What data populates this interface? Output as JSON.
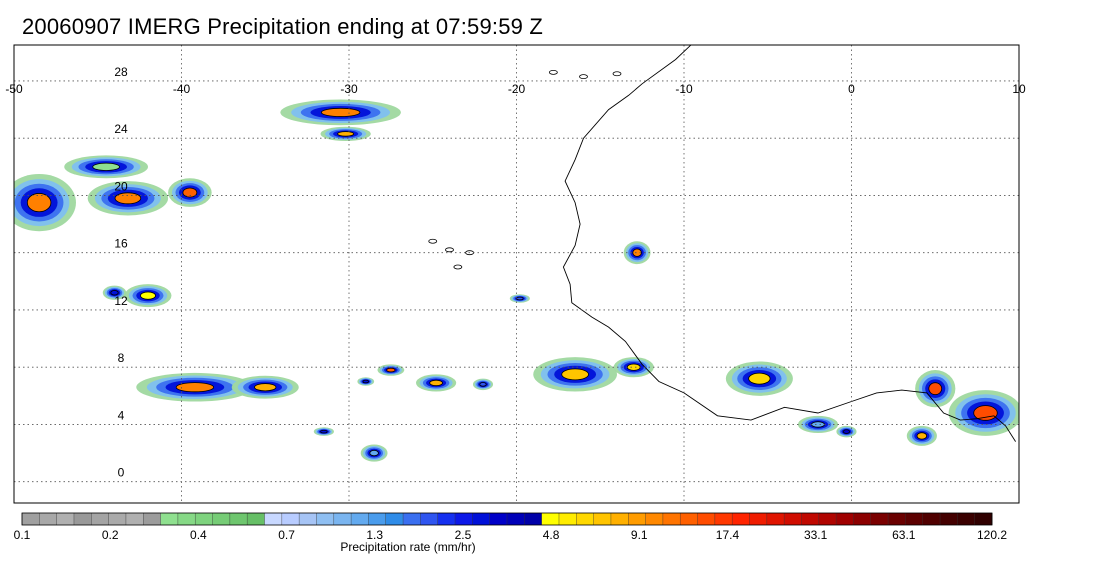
{
  "title": "20060907 IMERG Precipitation ending at 07:59:59 Z",
  "map": {
    "lon_range": [
      -50,
      10
    ],
    "lat_range": [
      -1,
      31
    ],
    "lon_ticks": [
      "-50",
      "-40",
      "-30",
      "-20",
      "-10",
      "0",
      "10"
    ],
    "lon_tick_values": [
      -50,
      -40,
      -30,
      -20,
      -10,
      0,
      10
    ],
    "lat_ticks": [
      "0",
      "4",
      "8",
      "12",
      "16",
      "20",
      "24",
      "28"
    ],
    "lat_tick_values": [
      0,
      4,
      8,
      12,
      16,
      20,
      24,
      28
    ],
    "grid": "dotted"
  },
  "colorbar": {
    "title": "Precipitation rate (mm/hr)",
    "labels": [
      "0.1",
      "0.2",
      "0.4",
      "0.7",
      "1.3",
      "2.5",
      "4.8",
      "9.1",
      "17.4",
      "33.1",
      "63.1",
      "120.2"
    ],
    "colors": [
      "#a0a0a0",
      "#a8a8a8",
      "#b0b0b0",
      "#999999",
      "#a4a4a4",
      "#aaaaaa",
      "#b0b0b0",
      "#9c9c9c",
      "#8fe08f",
      "#86d986",
      "#7ed37e",
      "#76cc76",
      "#6ec66e",
      "#66bf66",
      "#c8d8ff",
      "#b8ccff",
      "#a6c4f5",
      "#8fbff2",
      "#7ab5f0",
      "#63aaef",
      "#4a9cec",
      "#2f8ce8",
      "#3a6ff0",
      "#2f55f0",
      "#1530f0",
      "#0c18e8",
      "#0010d8",
      "#0000c8",
      "#0000b8",
      "#0000a8",
      "#ffff00",
      "#ffec00",
      "#ffd800",
      "#ffc400",
      "#ffb000",
      "#ff9c00",
      "#ff8800",
      "#ff7400",
      "#ff6000",
      "#ff4c00",
      "#ff3800",
      "#ff2400",
      "#f01c00",
      "#e01400",
      "#d00c00",
      "#c00800",
      "#b00400",
      "#a00000",
      "#8c0000",
      "#7a0000",
      "#6a0000",
      "#5c0000",
      "#500000",
      "#440000",
      "#3a0000",
      "#300000"
    ]
  },
  "precip_features": [
    {
      "lon": -48.5,
      "lat": 19.5,
      "rx": 2.2,
      "ry": 2.0,
      "peak": "#ff8000"
    },
    {
      "lon": -43.2,
      "lat": 19.8,
      "rx": 2.4,
      "ry": 1.2,
      "peak": "#ff8000"
    },
    {
      "lon": -39.5,
      "lat": 20.2,
      "rx": 1.3,
      "ry": 1.0,
      "peak": "#ff6000"
    },
    {
      "lon": -30.5,
      "lat": 25.8,
      "rx": 3.6,
      "ry": 0.9,
      "peak": "#ff8000"
    },
    {
      "lon": -30.2,
      "lat": 24.3,
      "rx": 1.5,
      "ry": 0.5,
      "peak": "#ffb000"
    },
    {
      "lon": -42.0,
      "lat": 13.0,
      "rx": 1.4,
      "ry": 0.8,
      "peak": "#ffff00"
    },
    {
      "lon": -39.2,
      "lat": 6.6,
      "rx": 3.5,
      "ry": 1.0,
      "peak": "#ff8000"
    },
    {
      "lon": -35.0,
      "lat": 6.6,
      "rx": 2.0,
      "ry": 0.8,
      "peak": "#ffb000"
    },
    {
      "lon": -27.5,
      "lat": 7.8,
      "rx": 0.8,
      "ry": 0.4,
      "peak": "#ff6000"
    },
    {
      "lon": -24.8,
      "lat": 6.9,
      "rx": 1.2,
      "ry": 0.6,
      "peak": "#ffb000"
    },
    {
      "lon": -16.5,
      "lat": 7.5,
      "rx": 2.5,
      "ry": 1.2,
      "peak": "#ffc400"
    },
    {
      "lon": -13.0,
      "lat": 8.0,
      "rx": 1.2,
      "ry": 0.7,
      "peak": "#ffd800"
    },
    {
      "lon": -5.5,
      "lat": 7.2,
      "rx": 2.0,
      "ry": 1.2,
      "peak": "#ffd800"
    },
    {
      "lon": 5.0,
      "lat": 6.5,
      "rx": 1.2,
      "ry": 1.3,
      "peak": "#ff4c00"
    },
    {
      "lon": 8.0,
      "lat": 4.8,
      "rx": 2.2,
      "ry": 1.6,
      "peak": "#ff4c00"
    },
    {
      "lon": 4.2,
      "lat": 3.2,
      "rx": 0.9,
      "ry": 0.7,
      "peak": "#ffb000"
    },
    {
      "lon": -12.8,
      "lat": 16.0,
      "rx": 0.8,
      "ry": 0.8,
      "peak": "#ff8000"
    },
    {
      "lon": -19.8,
      "lat": 12.8,
      "rx": 0.6,
      "ry": 0.3,
      "peak": "#2f55f0"
    },
    {
      "lon": -0.3,
      "lat": 3.5,
      "rx": 0.6,
      "ry": 0.4,
      "peak": "#0000c8"
    },
    {
      "lon": -44.0,
      "lat": 13.2,
      "rx": 0.7,
      "ry": 0.5,
      "peak": "#0010d8"
    },
    {
      "lon": -28.5,
      "lat": 2.0,
      "rx": 0.8,
      "ry": 0.6,
      "peak": "#63aaef"
    },
    {
      "lon": -31.5,
      "lat": 3.5,
      "rx": 0.6,
      "ry": 0.3,
      "peak": "#0010d8"
    },
    {
      "lon": -29.0,
      "lat": 7.0,
      "rx": 0.5,
      "ry": 0.3,
      "peak": "#0010d8"
    },
    {
      "lon": -2.0,
      "lat": 4.0,
      "rx": 1.2,
      "ry": 0.6,
      "peak": "#63aaef"
    },
    {
      "lon": -44.5,
      "lat": 22.0,
      "rx": 2.5,
      "ry": 0.8,
      "peak": "#8fe08f"
    },
    {
      "lon": -22.0,
      "lat": 6.8,
      "rx": 0.6,
      "ry": 0.4,
      "peak": "#2f55f0"
    }
  ]
}
